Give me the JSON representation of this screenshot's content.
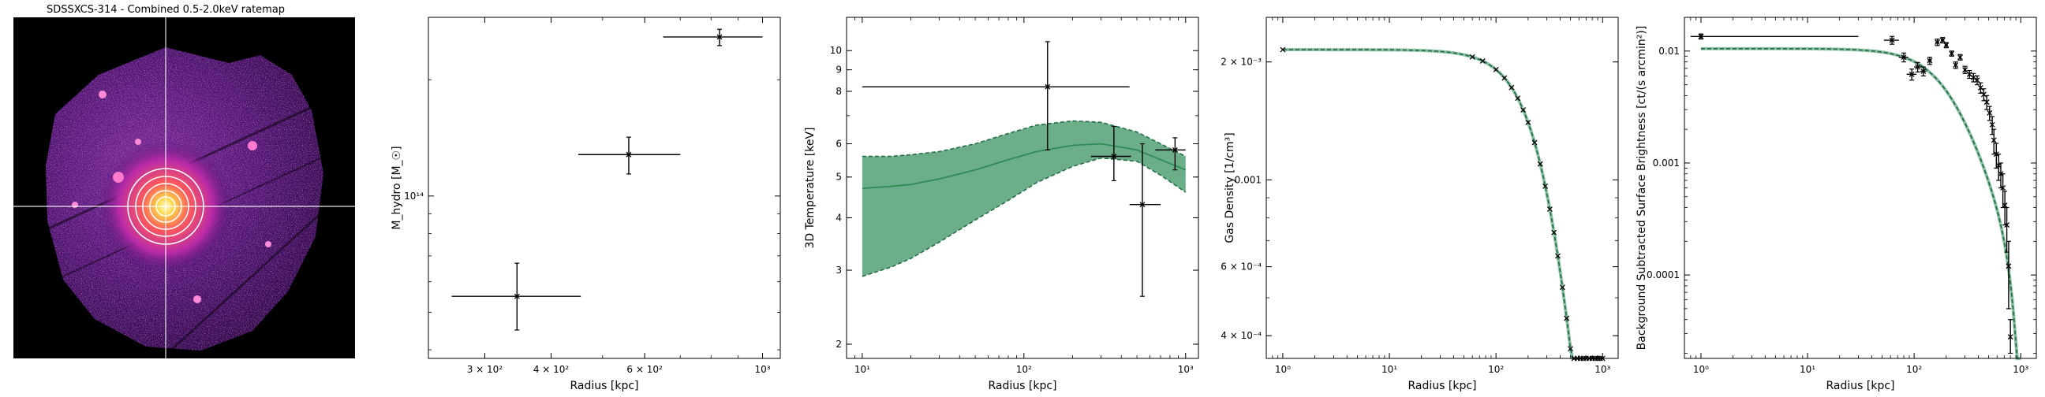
{
  "image_panel": {
    "title": "SDSSXCS-314 - Combined 0.5-2.0keV ratemap"
  },
  "chart_data": [
    {
      "type": "scatter",
      "xlabel": "Radius [kpc]",
      "ylabel": "M_hydro [M_☉]",
      "xscale": "log",
      "yscale": "log",
      "xlim": [
        235,
        1080
      ],
      "ylim": [
        38000000000000,
        290000000000000
      ],
      "xticks": [
        {
          "v": 300,
          "label": "3 × 10²"
        },
        {
          "v": 400,
          "label": "4 × 10²"
        },
        {
          "v": 600,
          "label": "6 × 10²"
        },
        {
          "v": 1000,
          "label": "10³"
        }
      ],
      "yticks": [
        {
          "v": 100000000000000,
          "label": "10¹⁴"
        }
      ],
      "points": [
        {
          "x": 345,
          "xerr": [
            260,
            455
          ],
          "y": 55000000000000,
          "yerr": [
            45000000000000,
            67000000000000
          ]
        },
        {
          "x": 560,
          "xerr": [
            450,
            700
          ],
          "y": 128000000000000,
          "yerr": [
            114000000000000,
            142000000000000
          ]
        },
        {
          "x": 830,
          "xerr": [
            650,
            1000
          ],
          "y": 258000000000000,
          "yerr": [
            245000000000000,
            270000000000000
          ]
        }
      ],
      "grid": false
    },
    {
      "type": "line",
      "xlabel": "Radius [kpc]",
      "ylabel": "3D Temperature [keV]",
      "xscale": "log",
      "yscale": "log",
      "xlim": [
        8,
        1200
      ],
      "ylim": [
        1.85,
        12
      ],
      "xticks": [
        {
          "v": 10,
          "label": "10¹"
        },
        {
          "v": 100,
          "label": "10²"
        },
        {
          "v": 1000,
          "label": "10³"
        }
      ],
      "yticks": [
        {
          "v": 2,
          "label": "2"
        },
        {
          "v": 3,
          "label": "3"
        },
        {
          "v": 4,
          "label": "4"
        },
        {
          "v": 5,
          "label": "5"
        },
        {
          "v": 6,
          "label": "6"
        },
        {
          "v": 8,
          "label": "8"
        },
        {
          "v": 9,
          "label": "9"
        },
        {
          "v": 10,
          "label": "10"
        }
      ],
      "band": {
        "x": [
          10,
          15,
          20,
          30,
          50,
          80,
          120,
          200,
          300,
          500,
          700,
          1000
        ],
        "low": [
          2.9,
          3.05,
          3.2,
          3.5,
          3.95,
          4.4,
          4.85,
          5.3,
          5.55,
          5.45,
          5.05,
          4.6
        ],
        "mid": [
          4.7,
          4.75,
          4.8,
          4.95,
          5.2,
          5.5,
          5.75,
          5.95,
          6.0,
          5.8,
          5.5,
          5.2
        ],
        "high": [
          5.6,
          5.6,
          5.65,
          5.75,
          6.0,
          6.35,
          6.65,
          6.8,
          6.75,
          6.4,
          6.0,
          5.6
        ]
      },
      "points": [
        {
          "x": 140,
          "xerr": [
            10,
            450
          ],
          "y": 8.2,
          "yerr": [
            5.8,
            10.5
          ]
        },
        {
          "x": 360,
          "xerr": [
            260,
            460
          ],
          "y": 5.6,
          "yerr": [
            4.9,
            6.6
          ]
        },
        {
          "x": 540,
          "xerr": [
            450,
            700
          ],
          "y": 4.3,
          "yerr": [
            2.6,
            6.0
          ]
        },
        {
          "x": 860,
          "xerr": [
            650,
            1000
          ],
          "y": 5.8,
          "yerr": [
            5.2,
            6.2
          ]
        }
      ],
      "band_color": "#2e8b57",
      "grid": false
    },
    {
      "type": "line",
      "xlabel": "Radius [kpc]",
      "ylabel": "Gas Density [1/cm³]",
      "xscale": "log",
      "yscale": "log",
      "xlim": [
        0.7,
        1400
      ],
      "ylim": [
        0.00035,
        0.0026
      ],
      "xticks": [
        {
          "v": 1,
          "label": "10⁰"
        },
        {
          "v": 10,
          "label": "10¹"
        },
        {
          "v": 100,
          "label": "10²"
        },
        {
          "v": 1000,
          "label": "10³"
        }
      ],
      "yticks": [
        {
          "v": 0.0004,
          "label": "4 × 10⁻⁴"
        },
        {
          "v": 0.0006,
          "label": "6 × 10⁻⁴"
        },
        {
          "v": 0.001,
          "label": "0.001"
        },
        {
          "v": 0.002,
          "label": "2 × 10⁻³"
        }
      ],
      "model": {
        "n0": 0.00215,
        "rc": 380,
        "beta": 0.7,
        "power": 3.5
      },
      "points_x": [
        1,
        60,
        75,
        100,
        120,
        140,
        160,
        180,
        200,
        230,
        260,
        290,
        320,
        350,
        380,
        420,
        460,
        500,
        540,
        580,
        620,
        660,
        700,
        750,
        800,
        850,
        900,
        950,
        1000
      ],
      "line_color": "#2e8b57",
      "grid": false
    },
    {
      "type": "line",
      "xlabel": "Radius [kpc]",
      "ylabel": "Background Subtracted Surface Brightness [ct/(s arcmin²)]",
      "xscale": "log",
      "yscale": "log",
      "xlim": [
        0.7,
        1400
      ],
      "ylim": [
        1.8e-05,
        0.02
      ],
      "xticks": [
        {
          "v": 1,
          "label": "10⁰"
        },
        {
          "v": 10,
          "label": "10¹"
        },
        {
          "v": 100,
          "label": "10²"
        },
        {
          "v": 1000,
          "label": "10³"
        }
      ],
      "yticks": [
        {
          "v": 0.0001,
          "label": "0.0001"
        },
        {
          "v": 0.001,
          "label": "0.001"
        },
        {
          "v": 0.01,
          "label": "0.01"
        }
      ],
      "model": {
        "s0": 0.0105,
        "rc": 230,
        "beta": 0.68
      },
      "points": [
        {
          "x": 1,
          "xerr": [
            0.8,
            30
          ],
          "y": 0.0135,
          "yerr": [
            0.0128,
            0.0142
          ]
        },
        {
          "x": 62,
          "xerr": [
            52,
            72
          ],
          "y": 0.0125,
          "yerr": [
            0.0115,
            0.0135
          ]
        },
        {
          "x": 80,
          "xerr": [
            72,
            88
          ],
          "y": 0.0088,
          "yerr": [
            0.008,
            0.0096
          ]
        },
        {
          "x": 95,
          "xerr": [
            85,
            105
          ],
          "y": 0.0062,
          "yerr": [
            0.0055,
            0.0069
          ]
        },
        {
          "x": 108,
          "xerr": [
            100,
            116
          ],
          "y": 0.0072,
          "yerr": [
            0.0065,
            0.0079
          ]
        },
        {
          "x": 122,
          "xerr": [
            114,
            130
          ],
          "y": 0.0066,
          "yerr": [
            0.006,
            0.0072
          ]
        },
        {
          "x": 140,
          "xerr": [
            134,
            146
          ],
          "y": 0.0082,
          "yerr": [
            0.0076,
            0.0088
          ]
        },
        {
          "x": 165,
          "xerr": [
            158,
            172
          ],
          "y": 0.012,
          "yerr": [
            0.0112,
            0.0128
          ]
        },
        {
          "x": 185,
          "xerr": [
            178,
            192
          ],
          "y": 0.0125,
          "yerr": [
            0.0118,
            0.0132
          ]
        },
        {
          "x": 200,
          "xerr": [
            193,
            207
          ],
          "y": 0.0113,
          "yerr": [
            0.0107,
            0.0119
          ]
        },
        {
          "x": 225,
          "xerr": [
            218,
            232
          ],
          "y": 0.0095,
          "yerr": [
            0.009,
            0.01
          ]
        },
        {
          "x": 245,
          "xerr": [
            238,
            252
          ],
          "y": 0.0075,
          "yerr": [
            0.007,
            0.008
          ]
        },
        {
          "x": 270,
          "xerr": [
            263,
            277
          ],
          "y": 0.0088,
          "yerr": [
            0.0083,
            0.0093
          ]
        },
        {
          "x": 300,
          "xerr": [
            292,
            308
          ],
          "y": 0.0068,
          "yerr": [
            0.0063,
            0.0073
          ]
        },
        {
          "x": 330,
          "xerr": [
            322,
            338
          ],
          "y": 0.0062,
          "yerr": [
            0.0057,
            0.0067
          ]
        },
        {
          "x": 360,
          "xerr": [
            352,
            368
          ],
          "y": 0.0058,
          "yerr": [
            0.0053,
            0.0063
          ]
        },
        {
          "x": 390,
          "xerr": [
            382,
            398
          ],
          "y": 0.0055,
          "yerr": [
            0.005,
            0.006
          ]
        },
        {
          "x": 420,
          "xerr": [
            412,
            428
          ],
          "y": 0.0047,
          "yerr": [
            0.0042,
            0.0052
          ]
        },
        {
          "x": 450,
          "xerr": [
            442,
            458
          ],
          "y": 0.0041,
          "yerr": [
            0.0036,
            0.0046
          ]
        },
        {
          "x": 480,
          "xerr": [
            472,
            488
          ],
          "y": 0.0035,
          "yerr": [
            0.003,
            0.004
          ]
        },
        {
          "x": 510,
          "xerr": [
            502,
            518
          ],
          "y": 0.0028,
          "yerr": [
            0.0024,
            0.0032
          ]
        },
        {
          "x": 540,
          "xerr": [
            532,
            548
          ],
          "y": 0.0022,
          "yerr": [
            0.0018,
            0.0026
          ]
        },
        {
          "x": 560,
          "xerr": [
            552,
            568
          ],
          "y": 0.0016,
          "yerr": [
            0.0012,
            0.002
          ]
        },
        {
          "x": 590,
          "xerr": [
            582,
            598
          ],
          "y": 0.0012,
          "yerr": [
            0.0009,
            0.0015
          ]
        },
        {
          "x": 620,
          "xerr": [
            612,
            628
          ],
          "y": 0.00095,
          "yerr": [
            0.0007,
            0.0012
          ]
        },
        {
          "x": 650,
          "xerr": [
            642,
            658
          ],
          "y": 0.0008,
          "yerr": [
            0.0006,
            0.001
          ]
        },
        {
          "x": 680,
          "xerr": [
            672,
            688
          ],
          "y": 0.0006,
          "yerr": [
            0.0004,
            0.0008
          ]
        },
        {
          "x": 710,
          "xerr": [
            702,
            718
          ],
          "y": 0.00042,
          "yerr": [
            0.00028,
            0.00056
          ]
        },
        {
          "x": 740,
          "xerr": [
            732,
            748
          ],
          "y": 0.00028,
          "yerr": [
            0.00016,
            0.0004
          ]
        },
        {
          "x": 770,
          "xerr": [
            762,
            778
          ],
          "y": 0.00012,
          "yerr": [
            5e-05,
            0.0002
          ]
        },
        {
          "x": 800,
          "xerr": [
            792,
            808
          ],
          "y": 2.8e-05,
          "yerr": [
            2e-05,
            4e-05
          ]
        }
      ],
      "line_color": "#2e8b57",
      "grid": false
    }
  ]
}
